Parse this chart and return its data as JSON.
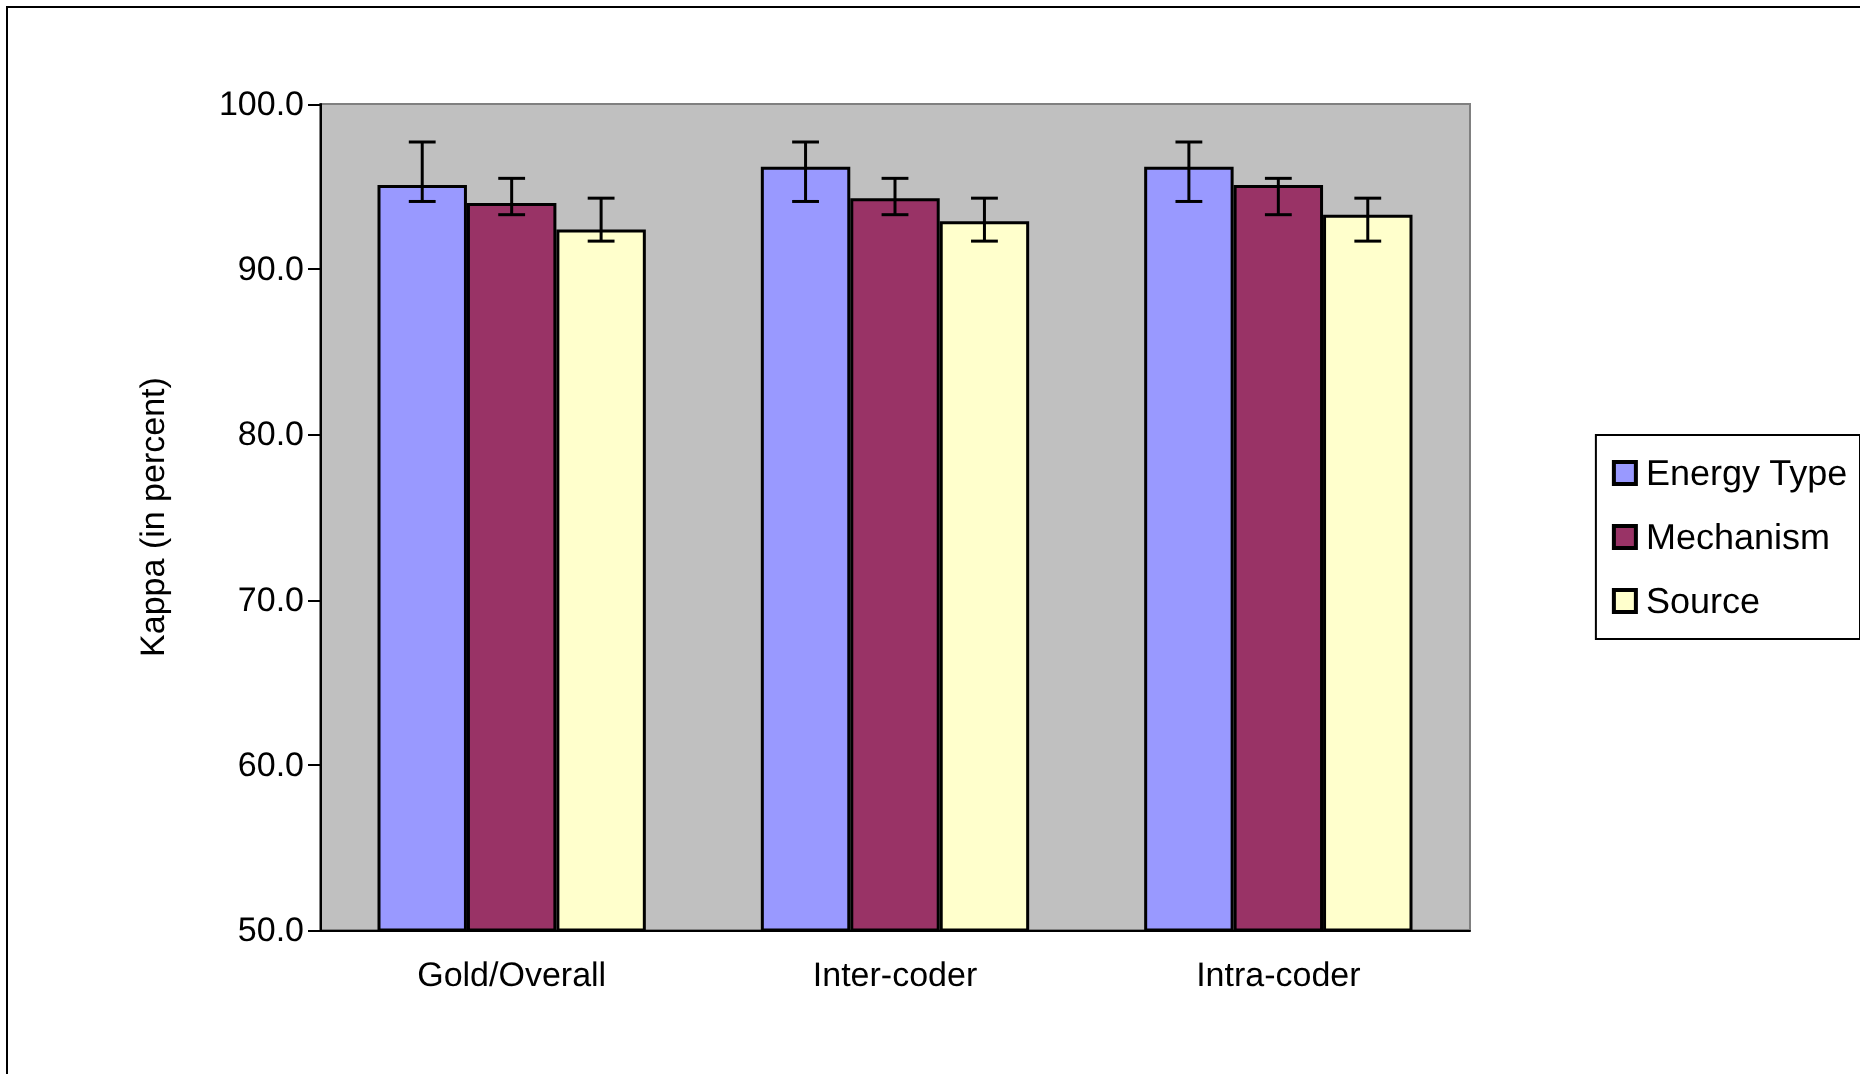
{
  "chart_data": {
    "type": "bar",
    "ylabel": "Kappa (in percent)",
    "categories": [
      "Gold/Overall",
      "Inter-coder",
      "Intra-coder"
    ],
    "series": [
      {
        "name": "Energy Type",
        "color": "#9999ff",
        "values": [
          95.1,
          96.2,
          96.2
        ],
        "errors": [
          [
            94.1,
            97.7
          ],
          [
            94.1,
            97.7
          ],
          [
            94.1,
            97.7
          ]
        ]
      },
      {
        "name": "Mechanism",
        "color": "#993366",
        "values": [
          94.0,
          94.3,
          95.1
        ],
        "errors": [
          [
            93.3,
            95.5
          ],
          [
            93.3,
            95.5
          ],
          [
            93.3,
            95.5
          ]
        ]
      },
      {
        "name": "Source",
        "color": "#ffffcc",
        "values": [
          92.4,
          92.9,
          93.3
        ],
        "errors": [
          [
            91.7,
            94.3
          ],
          [
            91.7,
            94.3
          ],
          [
            91.7,
            94.3
          ]
        ]
      }
    ],
    "ylim": [
      50,
      100
    ],
    "yticks": [
      {
        "value": 50,
        "label": "50.0"
      },
      {
        "value": 60,
        "label": "60.0"
      },
      {
        "value": 70,
        "label": "70.0"
      },
      {
        "value": 80,
        "label": "80.0"
      },
      {
        "value": 90,
        "label": "90.0"
      },
      {
        "value": 100,
        "label": "100.0"
      }
    ],
    "grid": false,
    "legend": "right"
  }
}
